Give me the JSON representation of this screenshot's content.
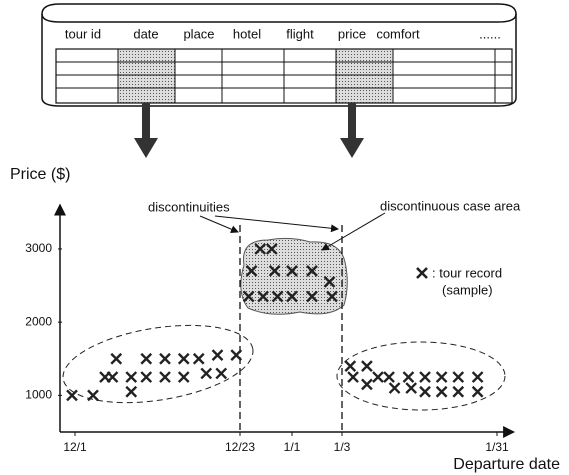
{
  "table": {
    "columns": [
      "tour id",
      "date",
      "place",
      "hotel",
      "flight",
      "price",
      "comfort",
      "......"
    ]
  },
  "chart_data": {
    "type": "scatter",
    "ylabel": "Price  ($)",
    "xlabel": "Departure date",
    "annotations": [
      "discontinuities",
      "discontinuous case area"
    ],
    "legend_note": "(sample)",
    "xlim": [
      -2,
      64
    ],
    "ylim": [
      500,
      3600
    ],
    "xticks": [
      {
        "value": 0,
        "label": "12/1"
      },
      {
        "value": 22,
        "label": "12/23"
      },
      {
        "value": 31,
        "label": "1/1"
      },
      {
        "value": 33,
        "label": "1/3"
      },
      {
        "value": 61,
        "label": "1/31"
      }
    ],
    "yticks": [
      1000,
      2000,
      3000
    ],
    "series": [
      {
        "name": ": tour record",
        "color": "#222",
        "x": [
          -0.4,
          2.4,
          4,
          5,
          5.5,
          7.5,
          7.5,
          9.5,
          9.5,
          12,
          12,
          14.5,
          14.5,
          16.5,
          17.5,
          19,
          19.5,
          21.5,
          23.5,
          24,
          25.5,
          26,
          27.5,
          28,
          28.5,
          31,
          31,
          31.8,
          31.8,
          32.5,
          32.6,
          34.5,
          35,
          37.5,
          37.5,
          39.5,
          41.5,
          42.5,
          45,
          45.5,
          48,
          48,
          51,
          51,
          54,
          54,
          57.5,
          57.5
        ],
        "values": [
          1000,
          1000,
          1250,
          1250,
          1500,
          1250,
          1050,
          1250,
          1500,
          1500,
          1250,
          1500,
          1250,
          1500,
          1300,
          1550,
          1300,
          1550,
          2350,
          2700,
          3000,
          2350,
          3000,
          2700,
          2350,
          2700,
          2350,
          2700,
          2350,
          2550,
          2350,
          1400,
          1250,
          1400,
          1150,
          1250,
          1250,
          1100,
          1250,
          1100,
          1250,
          1050,
          1250,
          1050,
          1250,
          1050,
          1250,
          1050
        ]
      }
    ]
  }
}
